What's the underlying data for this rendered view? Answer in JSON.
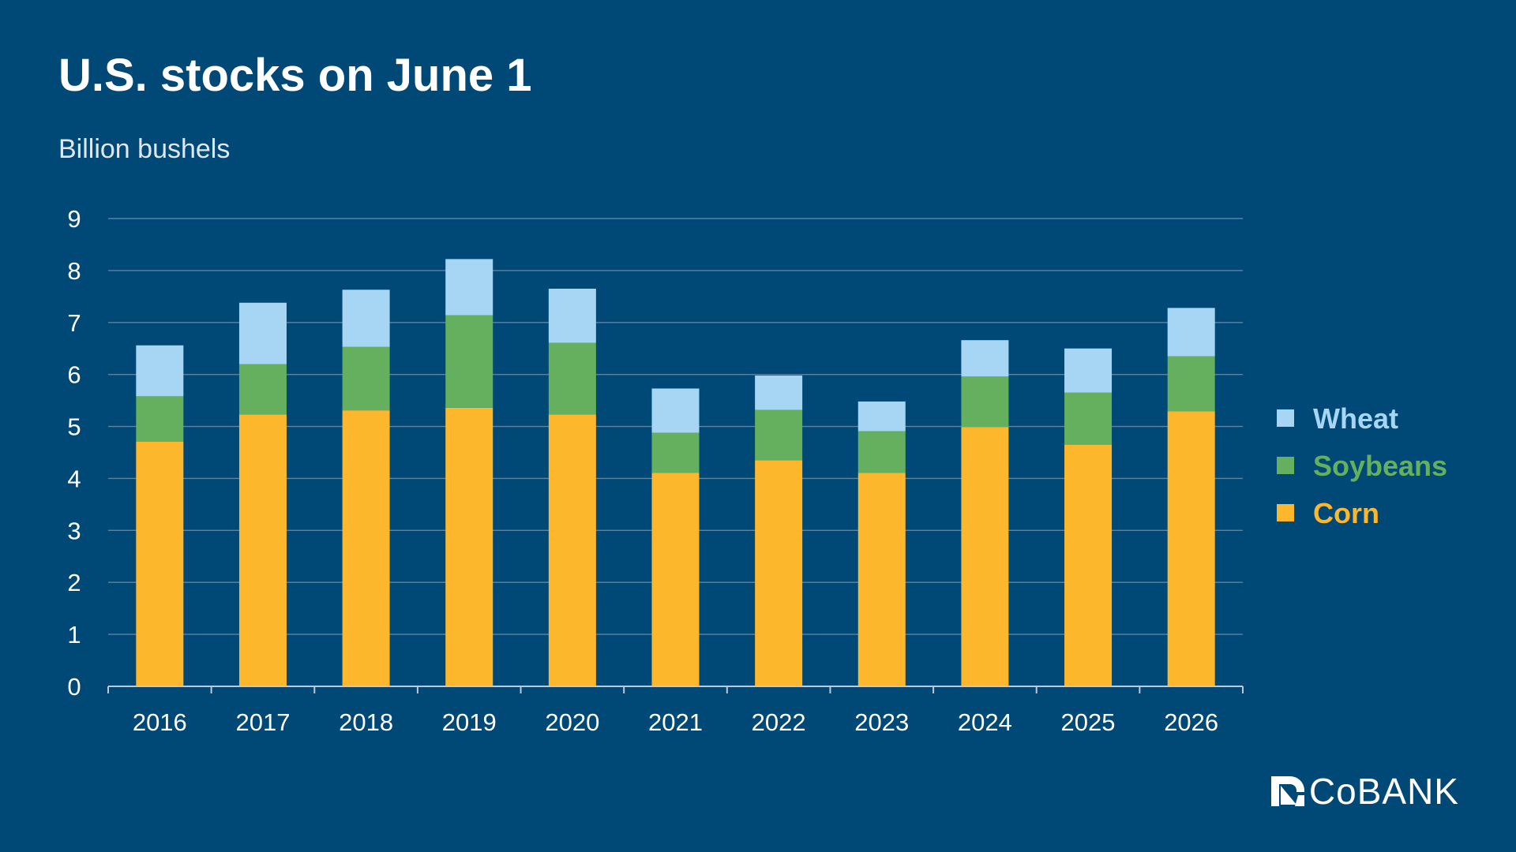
{
  "chart_data": {
    "type": "bar",
    "stacked": true,
    "title": "U.S. stocks on June 1",
    "subtitle": "Billion bushels",
    "categories": [
      "2016",
      "2017",
      "2018",
      "2019",
      "2020",
      "2021",
      "2022",
      "2023",
      "2024",
      "2025",
      "2026"
    ],
    "series": [
      {
        "name": "Corn",
        "color": "#FDB72D",
        "values": [
          4.71,
          5.23,
          5.31,
          5.36,
          5.23,
          4.11,
          4.35,
          4.11,
          4.99,
          4.65,
          5.29
        ]
      },
      {
        "name": "Soybeans",
        "color": "#65B05E",
        "values": [
          0.87,
          0.97,
          1.22,
          1.78,
          1.38,
          0.77,
          0.97,
          0.8,
          0.97,
          1.0,
          1.06
        ]
      },
      {
        "name": "Wheat",
        "color": "#A6D6F4",
        "values": [
          0.98,
          1.18,
          1.1,
          1.08,
          1.04,
          0.85,
          0.66,
          0.57,
          0.7,
          0.85,
          0.93
        ]
      }
    ],
    "legend_order": [
      "Wheat",
      "Soybeans",
      "Corn"
    ],
    "yticks": [
      "0",
      "1",
      "2",
      "3",
      "4",
      "5",
      "6",
      "7",
      "8",
      "9"
    ],
    "ylim": [
      0,
      9
    ],
    "grid": true,
    "legend_position": "right"
  },
  "brand": {
    "logo_text": "CoBANK",
    "background_color": "#004876"
  }
}
